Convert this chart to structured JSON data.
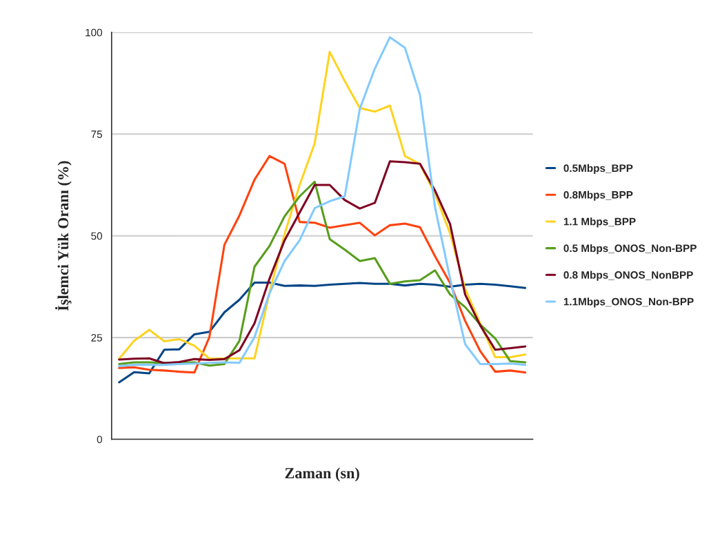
{
  "chart_data": {
    "type": "line",
    "xlabel": "Zaman (sn)",
    "ylabel": "İşlemci Yük Oranı (%)",
    "categories": [
      null,
      null,
      null,
      null,
      null,
      null,
      null,
      null,
      null,
      null,
      null,
      null,
      null,
      null,
      null,
      null,
      null,
      null,
      null,
      null,
      null,
      null,
      null,
      null,
      null,
      null,
      null,
      null
    ],
    "ylim": [
      0,
      100
    ],
    "yticks": [
      0,
      25,
      50,
      75,
      100
    ],
    "grid": "y",
    "legend": "right",
    "marker": "none",
    "line_style": "solid",
    "series": [
      {
        "name": "0.5Mbps_BPP",
        "color": "#004586",
        "values": [
          14,
          16.5,
          16.2,
          22,
          22.1,
          25.8,
          26.4,
          31.2,
          34.3,
          38.5,
          38.5,
          37.7,
          37.8,
          37.7,
          38,
          38.2,
          38.4,
          38.2,
          38.2,
          37.8,
          38.2,
          38,
          37.5,
          38,
          38.2,
          38,
          37.6,
          37.2
        ]
      },
      {
        "name": "0.8Mbps_BPP",
        "color": "#ff420e",
        "values": [
          17.5,
          17.7,
          17.1,
          16.9,
          16.6,
          16.4,
          25.1,
          47.8,
          55,
          63.8,
          69.6,
          67.7,
          53.4,
          53.2,
          52,
          52.6,
          53.2,
          50.1,
          52.6,
          53,
          52.1,
          45,
          38.4,
          29.1,
          21.7,
          16.6,
          16.9,
          16.4
        ]
      },
      {
        "name": "1.1 Mbps_BPP",
        "color": "#ffd320",
        "values": [
          19.8,
          24.2,
          26.9,
          24.1,
          24.6,
          23,
          19.8,
          19.9,
          19.9,
          19.9,
          36,
          50.4,
          62.5,
          72.7,
          95.2,
          88,
          81.4,
          80.5,
          82,
          69.6,
          67.6,
          60.3,
          50.6,
          37,
          28.5,
          20.2,
          20.2,
          20.8
        ]
      },
      {
        "name": "0.5 Mbps_ONOS_Non-BPP",
        "color": "#579d1c",
        "values": [
          18.5,
          18.9,
          18.9,
          18.8,
          18.8,
          18.9,
          18.1,
          18.5,
          24.2,
          42.4,
          47.5,
          54.8,
          59.7,
          63.3,
          49.2,
          46.6,
          43.8,
          44.5,
          38.2,
          38.8,
          39.1,
          41.5,
          35.6,
          32.5,
          28.2,
          24.8,
          19.2,
          18.9
        ]
      },
      {
        "name": "0.8 Mbps_ONOS_NonBPP",
        "color": "#7e0021",
        "values": [
          19.6,
          19.8,
          19.9,
          18.7,
          19,
          19.7,
          19.5,
          19.7,
          21.9,
          28.5,
          39.5,
          48.9,
          55.7,
          62.5,
          62.5,
          58.8,
          56.7,
          58.1,
          68.3,
          68.1,
          67.7,
          61.1,
          52.9,
          35.6,
          28,
          22,
          22.4,
          22.8
        ]
      },
      {
        "name": "1.1Mbps_ONOS_Non-BPP",
        "color": "#83caff",
        "values": [
          18,
          18.3,
          18.3,
          18.3,
          18.5,
          18.6,
          18.8,
          18.9,
          18.8,
          25.1,
          35.9,
          43.8,
          48.9,
          56.8,
          58.5,
          59.7,
          81.2,
          91.1,
          98.8,
          96.2,
          84.6,
          57,
          39.5,
          23.4,
          18.5,
          18.5,
          18.6,
          18.3
        ]
      }
    ]
  }
}
